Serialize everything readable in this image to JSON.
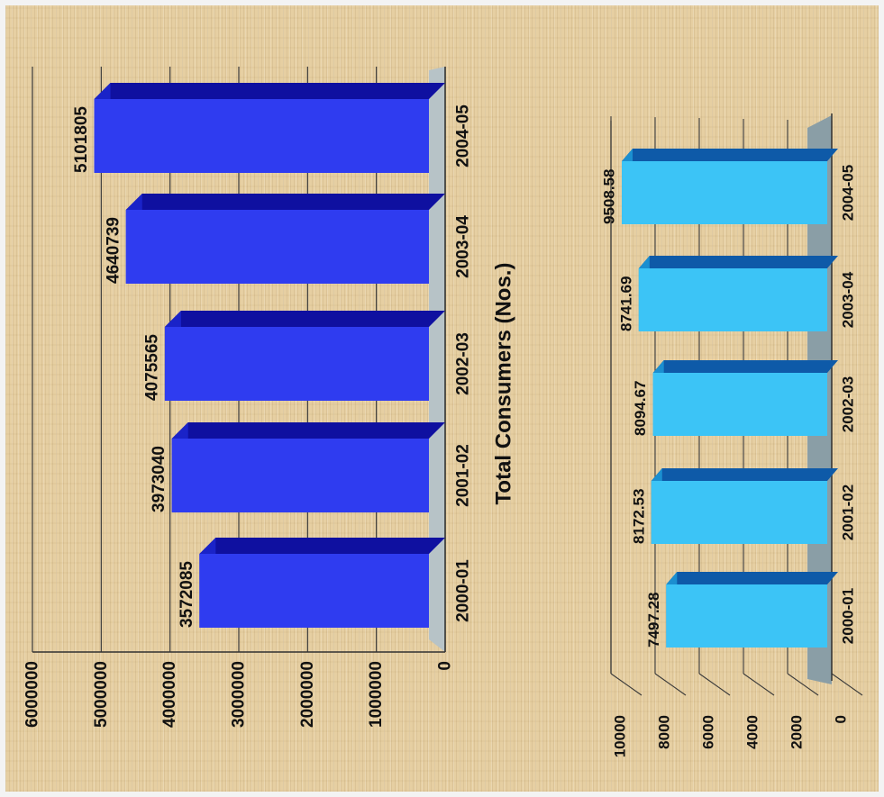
{
  "chart_data": [
    {
      "type": "bar",
      "orientation": "rotated-90",
      "title": "Total Consumers (Nos.)",
      "categories": [
        "2000-01",
        "2001-02",
        "2002-03",
        "2003-04",
        "2004-05"
      ],
      "values": [
        3572085,
        3973040,
        4075565,
        4640739,
        5101805
      ],
      "value_labels": [
        "3572085",
        "3973040",
        "4075565",
        "4640739",
        "5101805"
      ],
      "ylim": [
        0,
        6000000
      ],
      "ticks": [
        "0",
        "1000000",
        "2000000",
        "3000000",
        "4000000",
        "5000000",
        "6000000"
      ],
      "tick_values": [
        0,
        1000000,
        2000000,
        3000000,
        4000000,
        5000000,
        6000000
      ],
      "grid": true,
      "colors": {
        "front": "#2f3cf0",
        "top": "#0f10a0",
        "side": "#1a23c8",
        "floor": "#b7c3c7"
      }
    },
    {
      "type": "bar",
      "orientation": "rotated-90",
      "title": "",
      "categories": [
        "2000-01",
        "2001-02",
        "2002-03",
        "2003-04",
        "2004-05"
      ],
      "values": [
        7497.28,
        8172.53,
        8094.67,
        8741.69,
        9508.58
      ],
      "value_labels": [
        "7497.28",
        "8172.53",
        "8094.67",
        "8741.69",
        "9508.58"
      ],
      "ylim": [
        0,
        10000
      ],
      "ticks": [
        "0",
        "2000",
        "4000",
        "6000",
        "8000",
        "10000"
      ],
      "tick_values": [
        0,
        2000,
        4000,
        6000,
        8000,
        10000
      ],
      "grid": true,
      "colors": {
        "front": "#3cc4f6",
        "top": "#0e5aa8",
        "side": "#1b8fd0",
        "floor": "#8a9ea6"
      }
    }
  ]
}
